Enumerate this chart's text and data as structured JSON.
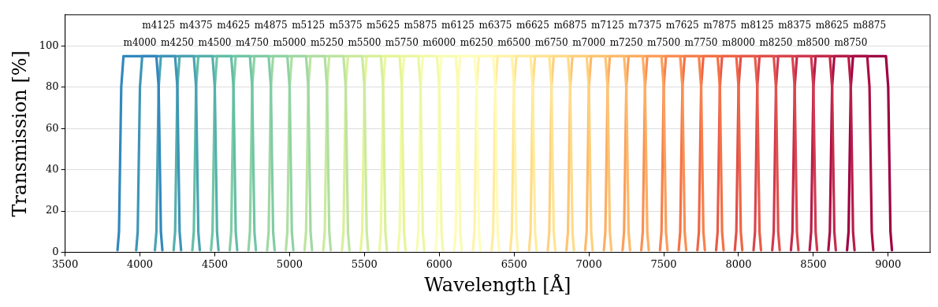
{
  "chart_data": {
    "type": "line",
    "xlabel": "Wavelength [Å]",
    "ylabel": "Transmission [%]",
    "xlim": [
      3500,
      9280
    ],
    "xticks": [
      3500,
      4000,
      4500,
      5000,
      5500,
      6000,
      6500,
      7000,
      7500,
      8000,
      8500,
      9000
    ],
    "ylim": [
      0,
      115
    ],
    "yticks": [
      0,
      20,
      40,
      60,
      80,
      100
    ],
    "grid": "y",
    "series": [
      {
        "name": "m4000",
        "color": "#3288bd",
        "x": [
          3850,
          3860,
          3875,
          3890,
          4110,
          4125,
          4140,
          4150
        ],
        "values": [
          1,
          10,
          80,
          95,
          95,
          80,
          10,
          1
        ]
      },
      {
        "name": "m4125",
        "color": "#3e95b7",
        "x": [
          3975,
          3985,
          4000,
          4015,
          4235,
          4250,
          4265,
          4275
        ],
        "values": [
          1,
          10,
          80,
          95,
          95,
          80,
          10,
          1
        ]
      },
      {
        "name": "m4250",
        "color": "#4aa3b2",
        "x": [
          4100,
          4110,
          4125,
          4140,
          4360,
          4375,
          4390,
          4400
        ],
        "values": [
          1,
          10,
          80,
          95,
          95,
          80,
          10,
          1
        ]
      },
      {
        "name": "m4375",
        "color": "#56b0ac",
        "x": [
          4225,
          4235,
          4250,
          4265,
          4485,
          4500,
          4515,
          4525
        ],
        "values": [
          1,
          10,
          80,
          95,
          95,
          80,
          10,
          1
        ]
      },
      {
        "name": "m4500",
        "color": "#62bea7",
        "x": [
          4350,
          4360,
          4375,
          4390,
          4610,
          4625,
          4640,
          4650
        ],
        "values": [
          1,
          10,
          80,
          95,
          95,
          80,
          10,
          1
        ]
      },
      {
        "name": "m4625",
        "color": "#71c6a5",
        "x": [
          4475,
          4485,
          4500,
          4515,
          4735,
          4750,
          4765,
          4775
        ],
        "values": [
          1,
          10,
          80,
          95,
          95,
          80,
          10,
          1
        ]
      },
      {
        "name": "m4750",
        "color": "#81cca5",
        "x": [
          4600,
          4610,
          4625,
          4640,
          4860,
          4875,
          4890,
          4900
        ],
        "values": [
          1,
          10,
          80,
          95,
          95,
          80,
          10,
          1
        ]
      },
      {
        "name": "m4875",
        "color": "#90d3a4",
        "x": [
          4725,
          4735,
          4750,
          4765,
          4985,
          5000,
          5015,
          5025
        ],
        "values": [
          1,
          10,
          80,
          95,
          95,
          80,
          10,
          1
        ]
      },
      {
        "name": "m5000",
        "color": "#a0d8a4",
        "x": [
          4850,
          4860,
          4875,
          4890,
          5110,
          5125,
          5140,
          5150
        ],
        "values": [
          1,
          10,
          80,
          95,
          95,
          80,
          10,
          1
        ]
      },
      {
        "name": "m5125",
        "color": "#b0dfa3",
        "x": [
          4975,
          4985,
          5000,
          5015,
          5235,
          5250,
          5265,
          5275
        ],
        "values": [
          1,
          10,
          80,
          95,
          95,
          80,
          10,
          1
        ]
      },
      {
        "name": "m5250",
        "color": "#bde4a0",
        "x": [
          5100,
          5110,
          5125,
          5140,
          5360,
          5375,
          5390,
          5400
        ],
        "values": [
          1,
          10,
          80,
          95,
          95,
          80,
          10,
          1
        ]
      },
      {
        "name": "m5375",
        "color": "#cbea9e",
        "x": [
          5225,
          5235,
          5250,
          5265,
          5485,
          5500,
          5515,
          5525
        ],
        "values": [
          1,
          10,
          80,
          95,
          95,
          80,
          10,
          1
        ]
      },
      {
        "name": "m5500",
        "color": "#d9ef9b",
        "x": [
          5350,
          5360,
          5375,
          5390,
          5610,
          5625,
          5640,
          5650
        ],
        "values": [
          1,
          10,
          80,
          95,
          95,
          80,
          10,
          1
        ]
      },
      {
        "name": "m5625",
        "color": "#e6f598",
        "x": [
          5475,
          5485,
          5500,
          5515,
          5735,
          5750,
          5765,
          5775
        ],
        "values": [
          1,
          10,
          80,
          95,
          95,
          80,
          10,
          1
        ]
      },
      {
        "name": "m5750",
        "color": "#ecf7a1",
        "x": [
          5600,
          5610,
          5625,
          5640,
          5860,
          5875,
          5890,
          5900
        ],
        "values": [
          1,
          10,
          80,
          95,
          95,
          80,
          10,
          1
        ]
      },
      {
        "name": "m5875",
        "color": "#f2faaa",
        "x": [
          5725,
          5735,
          5750,
          5765,
          5985,
          6000,
          6015,
          6025
        ],
        "values": [
          1,
          10,
          80,
          95,
          95,
          80,
          10,
          1
        ]
      },
      {
        "name": "m6000",
        "color": "#f7fcb3",
        "x": [
          5850,
          5860,
          5875,
          5890,
          6110,
          6125,
          6140,
          6150
        ],
        "values": [
          1,
          10,
          80,
          95,
          95,
          80,
          10,
          1
        ]
      },
      {
        "name": "m6125",
        "color": "#fdfebc",
        "x": [
          5975,
          5985,
          6000,
          6015,
          6235,
          6250,
          6265,
          6275
        ],
        "values": [
          1,
          10,
          80,
          95,
          95,
          80,
          10,
          1
        ]
      },
      {
        "name": "m6250",
        "color": "#fffab7",
        "x": [
          6100,
          6110,
          6125,
          6140,
          6360,
          6375,
          6390,
          6400
        ],
        "values": [
          1,
          10,
          80,
          95,
          95,
          80,
          10,
          1
        ]
      },
      {
        "name": "m6375",
        "color": "#fff3ab",
        "x": [
          6225,
          6235,
          6250,
          6265,
          6485,
          6500,
          6515,
          6525
        ],
        "values": [
          1,
          10,
          80,
          95,
          95,
          80,
          10,
          1
        ]
      },
      {
        "name": "m6500",
        "color": "#ffec9f",
        "x": [
          6350,
          6360,
          6375,
          6390,
          6610,
          6625,
          6640,
          6650
        ],
        "values": [
          1,
          10,
          80,
          95,
          95,
          80,
          10,
          1
        ]
      },
      {
        "name": "m6625",
        "color": "#fee593",
        "x": [
          6475,
          6485,
          6500,
          6515,
          6735,
          6750,
          6765,
          6775
        ],
        "values": [
          1,
          10,
          80,
          95,
          95,
          80,
          10,
          1
        ]
      },
      {
        "name": "m6750",
        "color": "#fedc88",
        "x": [
          6600,
          6610,
          6625,
          6640,
          6860,
          6875,
          6890,
          6900
        ],
        "values": [
          1,
          10,
          80,
          95,
          95,
          80,
          10,
          1
        ]
      },
      {
        "name": "m6875",
        "color": "#fed17e",
        "x": [
          6725,
          6735,
          6750,
          6765,
          6985,
          7000,
          7015,
          7025
        ],
        "values": [
          1,
          10,
          80,
          95,
          95,
          80,
          10,
          1
        ]
      },
      {
        "name": "m7000",
        "color": "#fdc574",
        "x": [
          6850,
          6860,
          6875,
          6890,
          7110,
          7125,
          7140,
          7150
        ],
        "values": [
          1,
          10,
          80,
          95,
          95,
          80,
          10,
          1
        ]
      },
      {
        "name": "m7125",
        "color": "#fdba6b",
        "x": [
          6975,
          6985,
          7000,
          7015,
          7235,
          7250,
          7265,
          7275
        ],
        "values": [
          1,
          10,
          80,
          95,
          95,
          80,
          10,
          1
        ]
      },
      {
        "name": "m7250",
        "color": "#fdae61",
        "x": [
          7100,
          7110,
          7125,
          7140,
          7360,
          7375,
          7390,
          7400
        ],
        "values": [
          1,
          10,
          80,
          95,
          95,
          80,
          10,
          1
        ]
      },
      {
        "name": "m7375",
        "color": "#fb9f5a",
        "x": [
          7225,
          7235,
          7250,
          7265,
          7485,
          7500,
          7515,
          7525
        ],
        "values": [
          1,
          10,
          80,
          95,
          95,
          80,
          10,
          1
        ]
      },
      {
        "name": "m7500",
        "color": "#f99053",
        "x": [
          7350,
          7360,
          7375,
          7390,
          7610,
          7625,
          7640,
          7650
        ],
        "values": [
          1,
          10,
          80,
          95,
          95,
          80,
          10,
          1
        ]
      },
      {
        "name": "m7625",
        "color": "#f7814c",
        "x": [
          7475,
          7485,
          7500,
          7515,
          7735,
          7750,
          7765,
          7775
        ],
        "values": [
          1,
          10,
          80,
          95,
          95,
          80,
          10,
          1
        ]
      },
      {
        "name": "m7750",
        "color": "#f57245",
        "x": [
          7600,
          7610,
          7625,
          7640,
          7860,
          7875,
          7890,
          7900
        ],
        "values": [
          1,
          10,
          80,
          95,
          95,
          80,
          10,
          1
        ]
      },
      {
        "name": "m7875",
        "color": "#ef6645",
        "x": [
          7725,
          7735,
          7750,
          7765,
          7985,
          8000,
          8015,
          8025
        ],
        "values": [
          1,
          10,
          80,
          95,
          95,
          80,
          10,
          1
        ]
      },
      {
        "name": "m8000",
        "color": "#e85b48",
        "x": [
          7850,
          7860,
          7875,
          7890,
          8110,
          8125,
          8140,
          8150
        ],
        "values": [
          1,
          10,
          80,
          95,
          95,
          80,
          10,
          1
        ]
      },
      {
        "name": "m8125",
        "color": "#e1504a",
        "x": [
          7975,
          7985,
          8000,
          8015,
          8235,
          8250,
          8265,
          8275
        ],
        "values": [
          1,
          10,
          80,
          95,
          95,
          80,
          10,
          1
        ]
      },
      {
        "name": "m8250",
        "color": "#da454d",
        "x": [
          8100,
          8110,
          8125,
          8140,
          8360,
          8375,
          8390,
          8400
        ],
        "values": [
          1,
          10,
          80,
          95,
          95,
          80,
          10,
          1
        ]
      },
      {
        "name": "m8375",
        "color": "#d1394e",
        "x": [
          8225,
          8235,
          8250,
          8265,
          8485,
          8500,
          8515,
          8525
        ],
        "values": [
          1,
          10,
          80,
          95,
          95,
          80,
          10,
          1
        ]
      },
      {
        "name": "m8500",
        "color": "#c42b4c",
        "x": [
          8350,
          8360,
          8375,
          8390,
          8610,
          8625,
          8640,
          8650
        ],
        "values": [
          1,
          10,
          80,
          95,
          95,
          80,
          10,
          1
        ]
      },
      {
        "name": "m8625",
        "color": "#b71d49",
        "x": [
          8475,
          8485,
          8500,
          8515,
          8735,
          8750,
          8765,
          8775
        ],
        "values": [
          1,
          10,
          80,
          95,
          95,
          80,
          10,
          1
        ]
      },
      {
        "name": "m8750",
        "color": "#aa0e45",
        "x": [
          8600,
          8610,
          8625,
          8640,
          8860,
          8875,
          8890,
          8900
        ],
        "values": [
          1,
          10,
          80,
          95,
          95,
          80,
          10,
          1
        ]
      },
      {
        "name": "m8875",
        "color": "#9e0142",
        "x": [
          8725,
          8735,
          8750,
          8765,
          8985,
          9000,
          9015,
          9025
        ],
        "values": [
          1,
          10,
          80,
          95,
          95,
          80,
          10,
          1
        ]
      }
    ]
  }
}
